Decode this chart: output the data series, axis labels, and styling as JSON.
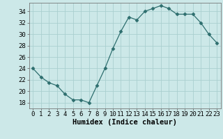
{
  "x": [
    0,
    1,
    2,
    3,
    4,
    5,
    6,
    7,
    8,
    9,
    10,
    11,
    12,
    13,
    14,
    15,
    16,
    17,
    18,
    19,
    20,
    21,
    22,
    23
  ],
  "y": [
    24,
    22.5,
    21.5,
    21,
    19.5,
    18.5,
    18.5,
    18,
    21,
    24,
    27.5,
    30.5,
    33,
    32.5,
    34,
    34.5,
    35,
    34.5,
    33.5,
    33.5,
    33.5,
    32,
    30,
    28.5
  ],
  "line_color": "#2d6e6e",
  "marker": "D",
  "marker_size": 2.5,
  "bg_color": "#cce8e8",
  "grid_color": "#aacfcf",
  "xlabel": "Humidex (Indice chaleur)",
  "xlim": [
    -0.5,
    23.5
  ],
  "ylim": [
    17,
    35.5
  ],
  "yticks": [
    18,
    20,
    22,
    24,
    26,
    28,
    30,
    32,
    34
  ],
  "xticks": [
    0,
    1,
    2,
    3,
    4,
    5,
    6,
    7,
    8,
    9,
    10,
    11,
    12,
    13,
    14,
    15,
    16,
    17,
    18,
    19,
    20,
    21,
    22,
    23
  ],
  "tick_fontsize": 6.5,
  "xlabel_fontsize": 7.5
}
